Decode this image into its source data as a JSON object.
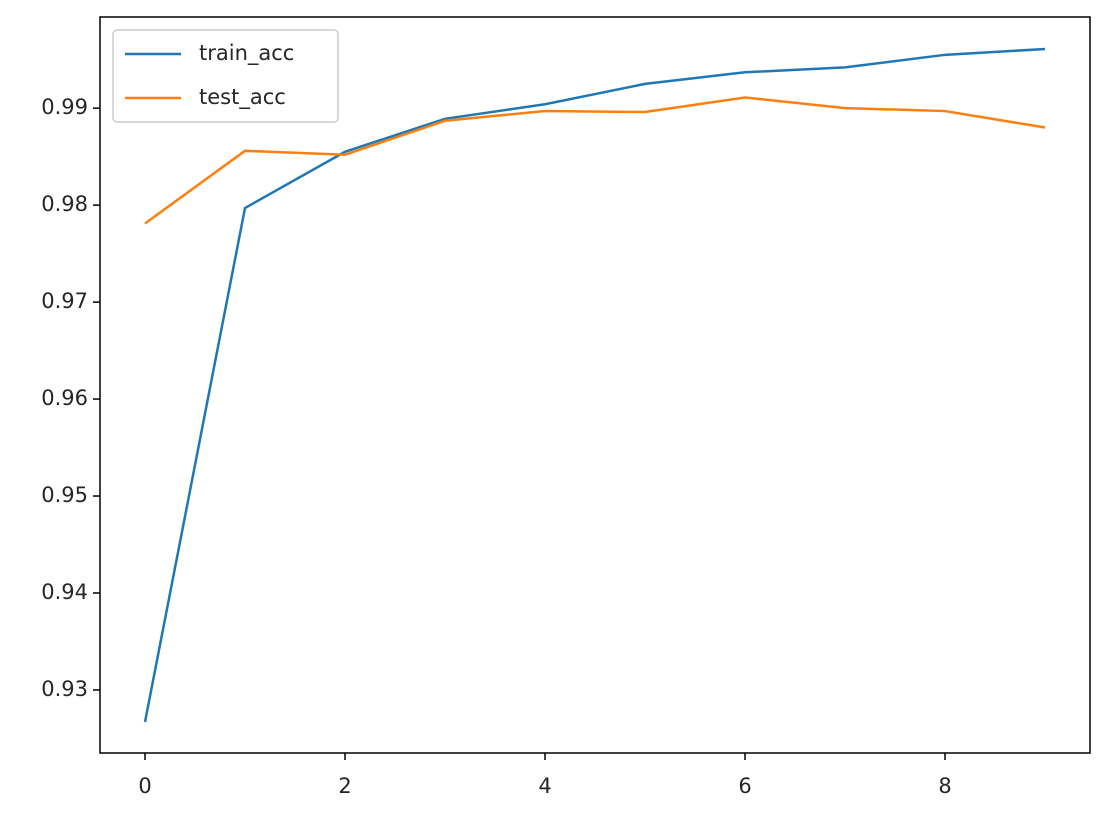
{
  "chart_data": {
    "type": "line",
    "x": [
      0,
      1,
      2,
      3,
      4,
      5,
      6,
      7,
      8,
      9
    ],
    "series": [
      {
        "name": "train_acc",
        "color": "#1f77b4",
        "values": [
          0.9267,
          0.9797,
          0.9855,
          0.9889,
          0.9904,
          0.9925,
          0.9937,
          0.9942,
          0.9955,
          0.9961
        ]
      },
      {
        "name": "test_acc",
        "color": "#ff7f0e",
        "values": [
          0.9781,
          0.9856,
          0.9852,
          0.9887,
          0.9897,
          0.9896,
          0.9911,
          0.99,
          0.9897,
          0.988
        ]
      }
    ],
    "xlim": [
      -0.45,
      9.45
    ],
    "xticks": [
      0,
      2,
      4,
      6,
      8
    ],
    "ylim": [
      0.9235,
      0.9994
    ],
    "yticks": [
      0.93,
      0.94,
      0.95,
      0.96,
      0.97,
      0.98,
      0.99
    ],
    "legend": "upper left",
    "grid": false
  }
}
